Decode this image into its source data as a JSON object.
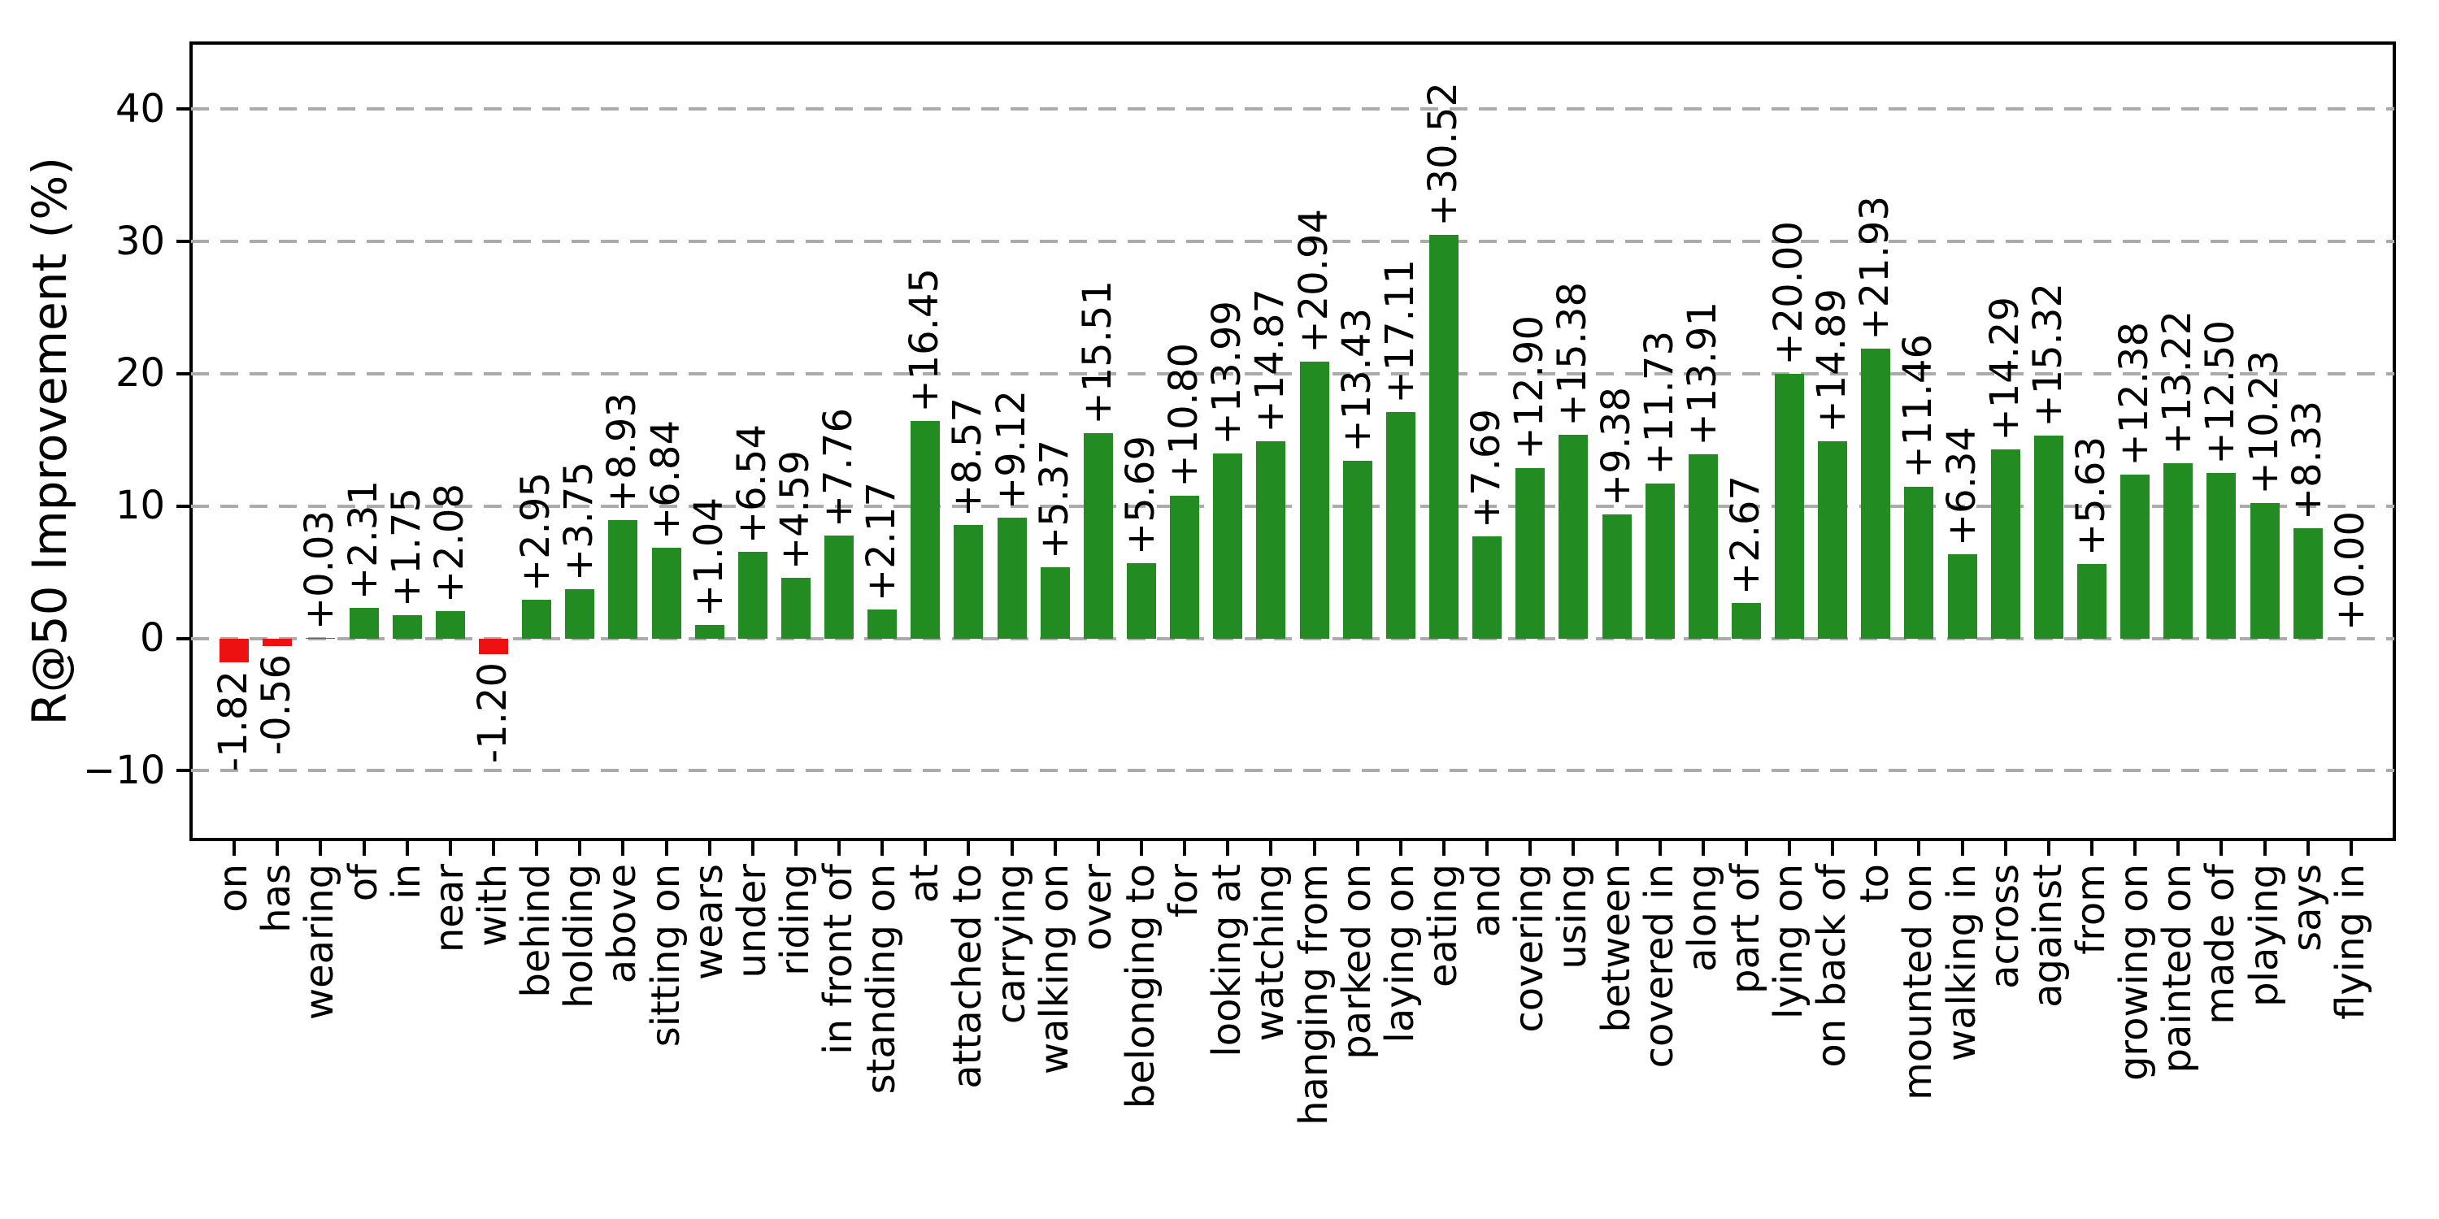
{
  "chart_data": {
    "type": "bar",
    "title": "",
    "ylabel": "R@50 Improvement (%)",
    "xlabel": "",
    "categories": [
      "on",
      "has",
      "wearing",
      "of",
      "in",
      "near",
      "with",
      "behind",
      "holding",
      "above",
      "sitting on",
      "wears",
      "under",
      "riding",
      "in front of",
      "standing on",
      "at",
      "attached to",
      "carrying",
      "walking on",
      "over",
      "belonging to",
      "for",
      "looking at",
      "watching",
      "hanging from",
      "parked on",
      "laying on",
      "eating",
      "and",
      "covering",
      "using",
      "between",
      "covered in",
      "along",
      "part of",
      "lying on",
      "on back of",
      "to",
      "mounted on",
      "walking in",
      "across",
      "against",
      "from",
      "growing on",
      "painted on",
      "made of",
      "playing",
      "says",
      "flying in"
    ],
    "values": [
      -1.82,
      -0.56,
      0.03,
      2.31,
      1.75,
      2.08,
      -1.2,
      2.95,
      3.75,
      8.93,
      6.84,
      1.04,
      6.54,
      4.59,
      7.76,
      2.17,
      16.45,
      8.57,
      9.12,
      5.37,
      15.51,
      5.69,
      10.8,
      13.99,
      14.87,
      20.94,
      13.43,
      17.11,
      30.52,
      7.69,
      12.9,
      15.38,
      9.38,
      11.73,
      13.91,
      2.67,
      20.0,
      14.89,
      21.93,
      11.46,
      6.34,
      14.29,
      15.32,
      5.63,
      12.38,
      13.22,
      12.5,
      10.23,
      8.33,
      0.0
    ],
    "value_labels": [
      "-1.82",
      "-0.56",
      "+0.03",
      "+2.31",
      "+1.75",
      "+2.08",
      "-1.20",
      "+2.95",
      "+3.75",
      "+8.93",
      "+6.84",
      "+1.04",
      "+6.54",
      "+4.59",
      "+7.76",
      "+2.17",
      "+16.45",
      "+8.57",
      "+9.12",
      "+5.37",
      "+15.51",
      "+5.69",
      "+10.80",
      "+13.99",
      "+14.87",
      "+20.94",
      "+13.43",
      "+17.11",
      "+30.52",
      "+7.69",
      "+12.90",
      "+15.38",
      "+9.38",
      "+11.73",
      "+13.91",
      "+2.67",
      "+20.00",
      "+14.89",
      "+21.93",
      "+11.46",
      "+6.34",
      "+14.29",
      "+15.32",
      "+5.63",
      "+12.38",
      "+13.22",
      "+12.50",
      "+10.23",
      "+8.33",
      "+0.00"
    ],
    "yticks": [
      40,
      30,
      20,
      10,
      0,
      -10
    ],
    "ytick_labels": [
      "40",
      "30",
      "20",
      "10",
      "0",
      "−10"
    ],
    "ylim": [
      -15.2,
      45.0
    ],
    "grid": "horizontal-dashed",
    "legend": null,
    "bar_label_rotation_deg": 90,
    "xtick_label_rotation_deg": 90,
    "colors": {
      "positive_bar": "#228B22",
      "negative_bar": "#EE1111",
      "grid": "#ABABAB",
      "axis": "#000000",
      "text": "#000000"
    }
  }
}
